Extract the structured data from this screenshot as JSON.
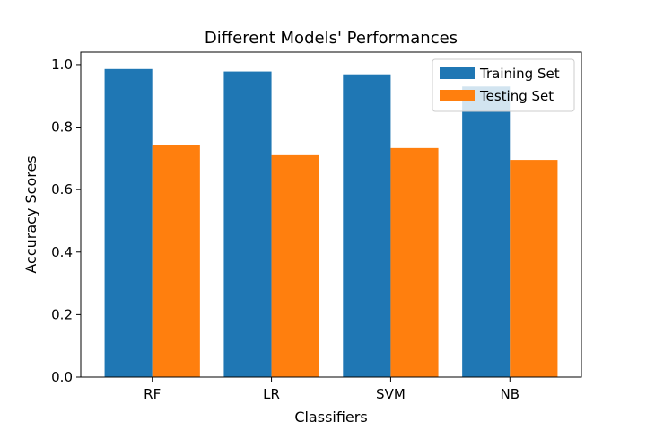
{
  "chart_data": {
    "type": "bar",
    "title": "Different Models' Performances",
    "xlabel": "Classifiers",
    "ylabel": "Accuracy Scores",
    "categories": [
      "RF",
      "LR",
      "SVM",
      "NB"
    ],
    "series": [
      {
        "name": "Training Set",
        "color": "#1f77b4",
        "values": [
          0.986,
          0.978,
          0.969,
          0.93
        ]
      },
      {
        "name": "Testing Set",
        "color": "#ff7f0e",
        "values": [
          0.743,
          0.71,
          0.733,
          0.695
        ]
      }
    ],
    "ylim": [
      0,
      1.04
    ],
    "yticks": [
      "0.0",
      "0.2",
      "0.4",
      "0.6",
      "0.8",
      "1.0"
    ],
    "legend_position": "top-right",
    "grid": false
  }
}
